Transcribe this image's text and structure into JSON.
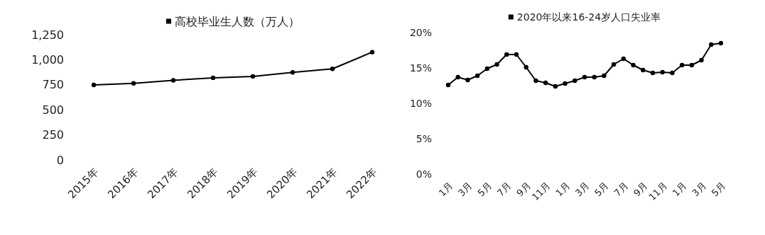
{
  "chart_data": [
    {
      "type": "line",
      "categories": [
        "2015年",
        "2016年",
        "2017年",
        "2018年",
        "2019年",
        "2020年",
        "2021年",
        "2022年"
      ],
      "series": [
        {
          "name": "高校毕业生人数（万人）",
          "color": "#000000",
          "values": [
            749,
            765,
            795,
            820,
            834,
            874,
            909,
            1076
          ]
        }
      ],
      "ylim": [
        0,
        1250
      ],
      "yticks": [
        0,
        250,
        500,
        750,
        {
          "value": 1000,
          "label": "1,000"
        },
        {
          "value": 1250,
          "label": "1,250"
        }
      ],
      "legend": "top",
      "marker": "circle"
    },
    {
      "type": "line",
      "categories": [
        "1月",
        null,
        "3月",
        null,
        "5月",
        null,
        "7月",
        null,
        "9月",
        null,
        "11月",
        null,
        "1月",
        null,
        "3月",
        null,
        "5月",
        null,
        "7月",
        null,
        "9月",
        null,
        "11月",
        null,
        "1月",
        null,
        "3月",
        null,
        "5月"
      ],
      "series": [
        {
          "name": "2020年以来16-24岁人口失业率",
          "color": "#000000",
          "values": [
            12.6,
            13.7,
            13.3,
            13.9,
            14.9,
            15.5,
            16.9,
            16.9,
            15.1,
            13.2,
            12.9,
            12.4,
            12.8,
            13.2,
            13.7,
            13.7,
            13.9,
            15.5,
            16.3,
            15.4,
            14.7,
            14.3,
            14.4,
            14.3,
            15.4,
            15.4,
            16.1,
            18.3,
            18.5
          ]
        }
      ],
      "ylim": [
        0,
        20
      ],
      "yticks": [
        {
          "value": 0,
          "label": "0%"
        },
        {
          "value": 5,
          "label": "5%"
        },
        {
          "value": 10,
          "label": "10%"
        },
        {
          "value": 15,
          "label": "15%"
        },
        {
          "value": 20,
          "label": "20%"
        }
      ],
      "legend": "top",
      "marker": "circle"
    }
  ]
}
